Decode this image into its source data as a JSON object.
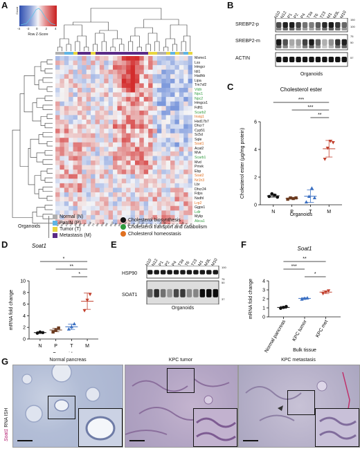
{
  "panels": {
    "a": "A",
    "b": "B",
    "c": "C",
    "d": "D",
    "e": "E",
    "f": "F",
    "g": "G"
  },
  "heatmap": {
    "colorkey_label": "Row Z-Score",
    "colorkey_ticks": [
      "-4",
      "-2",
      "0",
      "2",
      "4"
    ],
    "colorkey_yaxis": "Count",
    "genes": [
      {
        "name": "Msmo1",
        "color": "#111111"
      },
      {
        "name": "Lss",
        "color": "#111111"
      },
      {
        "name": "Hmgcr",
        "color": "#111111"
      },
      {
        "name": "Idi1",
        "color": "#111111"
      },
      {
        "name": "Hadhb",
        "color": "#111111"
      },
      {
        "name": "Lipa",
        "color": "#111111"
      },
      {
        "name": "Tm7sf2",
        "color": "#111111"
      },
      {
        "name": "Vldlr",
        "color": "#2e9a3c"
      },
      {
        "name": "Npc1",
        "color": "#2e9a3c"
      },
      {
        "name": "Npc2",
        "color": "#2e9a3c"
      },
      {
        "name": "Hmgcs1",
        "color": "#111111"
      },
      {
        "name": "Fdft1",
        "color": "#111111"
      },
      {
        "name": "Scarb2",
        "color": "#2e9a3c"
      },
      {
        "name": "Insig1",
        "color": "#e07020"
      },
      {
        "name": "Hsd17b7",
        "color": "#111111"
      },
      {
        "name": "Dhcr7",
        "color": "#111111"
      },
      {
        "name": "Cyp51",
        "color": "#111111"
      },
      {
        "name": "Sc5d",
        "color": "#111111"
      },
      {
        "name": "Sqle",
        "color": "#111111"
      },
      {
        "name": "Soat1",
        "color": "#e07020"
      },
      {
        "name": "Acat2",
        "color": "#111111"
      },
      {
        "name": "Mvk",
        "color": "#111111"
      },
      {
        "name": "Scarb1",
        "color": "#2e9a3c"
      },
      {
        "name": "Mvd",
        "color": "#111111"
      },
      {
        "name": "Pmvk",
        "color": "#111111"
      },
      {
        "name": "Ebp",
        "color": "#111111"
      },
      {
        "name": "Soat2",
        "color": "#e07020"
      },
      {
        "name": "Nr1h3",
        "color": "#e07020"
      },
      {
        "name": "Lbr",
        "color": "#111111"
      },
      {
        "name": "Dhcr24",
        "color": "#111111"
      },
      {
        "name": "Fdps",
        "color": "#111111"
      },
      {
        "name": "Nsdhl",
        "color": "#111111"
      },
      {
        "name": "Lrp2",
        "color": "#e07020"
      },
      {
        "name": "Ggps1",
        "color": "#111111"
      },
      {
        "name": "Ldlr",
        "color": "#2e9a3c"
      },
      {
        "name": "Mylip",
        "color": "#111111"
      },
      {
        "name": "Abca1",
        "color": "#2e9a3c"
      }
    ],
    "samples": [
      "N17",
      "N11",
      "P4",
      "P2",
      "T7",
      "M1",
      "M4",
      "M16",
      "T4",
      "M3",
      "M11",
      "M5",
      "M12",
      "M6",
      "M2",
      "M14",
      "M8",
      "M9",
      "M13",
      "M10",
      "M7",
      "T6",
      "T1",
      "N10",
      "N16",
      "T3",
      "P1",
      "T5",
      "N12",
      "P3",
      "T8"
    ],
    "legend_title": "Organoids",
    "groups": [
      {
        "label": "Normal (N)",
        "color": "#b0b0b0"
      },
      {
        "label": "PanIN (P)",
        "color": "#5fb4e4"
      },
      {
        "label": "Tumor (T)",
        "color": "#e8d640"
      },
      {
        "label": "Metastasis (M)",
        "color": "#5a2a86"
      }
    ],
    "pathways": [
      {
        "label": "Cholesterol biosynthesis",
        "color": "#111111"
      },
      {
        "label": "Cholesterol transport and catabolism",
        "color": "#2e9a3c"
      },
      {
        "label": "Cholesterol homeostasis",
        "color": "#e07020"
      }
    ]
  },
  "blot_b": {
    "lanes": [
      "N10",
      "N12",
      "P1",
      "P2",
      "P4",
      "T3a",
      "T6",
      "T23",
      "M1",
      "M3L",
      "M10"
    ],
    "rows": [
      "SREBP2-p",
      "SREBP2-m",
      "ACTIN"
    ],
    "markers": [
      "150",
      "100",
      "75",
      "50",
      "57"
    ],
    "xlabel": "Organoids"
  },
  "chart_data": [
    {
      "type": "scatter",
      "title": "Cholesterol ester",
      "ylabel": "Cholesterol ester (µg/mg protein)",
      "xlabel": "Organoids",
      "categories": [
        "N",
        "P",
        "T",
        "M"
      ],
      "ylim": [
        0,
        6
      ],
      "yticks": [
        "0",
        "2",
        "4",
        "6"
      ],
      "colors": [
        "#111111",
        "#6b3a1f",
        "#3a6fc2",
        "#c2402e"
      ],
      "points": [
        [
          0.6,
          0.8,
          0.7,
          0.55
        ],
        [
          0.4,
          0.5,
          0.45,
          0.5
        ],
        [
          0.2,
          0.6,
          1.2,
          0.5
        ],
        [
          3.3,
          4.1,
          4.6,
          4.5
        ]
      ],
      "means": [
        0.65,
        0.46,
        0.62,
        4.05
      ],
      "sd": [
        0.1,
        0.05,
        0.45,
        0.6
      ],
      "sig": [
        {
          "a": 0,
          "b": 3,
          "label": "***"
        },
        {
          "a": 1,
          "b": 3,
          "label": "***"
        },
        {
          "a": 2,
          "b": 3,
          "label": "**"
        }
      ]
    },
    {
      "type": "scatter",
      "title": "Soat1",
      "ylabel": "mRNA fold change",
      "xlabel": "Organoids",
      "categories": [
        "N",
        "P",
        "T",
        "M"
      ],
      "ylim": [
        0,
        10
      ],
      "yticks": [
        "0",
        "2",
        "4",
        "6",
        "8",
        "10"
      ],
      "colors": [
        "#111111",
        "#6b3a1f",
        "#3a6fc2",
        "#c2402e"
      ],
      "points": [
        [
          1.0,
          1.2,
          1.1
        ],
        [
          1.2,
          1.5,
          1.9
        ],
        [
          1.7,
          2.1,
          2.6
        ],
        [
          4.9,
          6.7,
          7.7
        ]
      ],
      "means": [
        1.1,
        1.55,
        2.1,
        6.5
      ],
      "sd": [
        0.15,
        0.3,
        0.45,
        1.4
      ],
      "sig": [
        {
          "a": 0,
          "b": 3,
          "label": "*"
        },
        {
          "a": 1,
          "b": 3,
          "label": "**"
        },
        {
          "a": 2,
          "b": 3,
          "label": "*"
        }
      ]
    },
    {
      "type": "scatter",
      "title": "Soat1",
      "ylabel": "mRNA fold change",
      "xlabel": "Bulk tissue",
      "categories": [
        "Normal pancreas",
        "KPC tumor",
        "KPC met"
      ],
      "ylim": [
        0,
        4
      ],
      "yticks": [
        "0",
        "1",
        "2",
        "3",
        "4"
      ],
      "colors": [
        "#111111",
        "#3a6fc2",
        "#c2402e"
      ],
      "points": [
        [
          0.95,
          1.05,
          1.15
        ],
        [
          1.95,
          2.05,
          2.1
        ],
        [
          2.6,
          2.75,
          2.9
        ]
      ],
      "means": [
        1.05,
        2.05,
        2.75
      ],
      "sd": [
        0.1,
        0.08,
        0.15
      ],
      "sig": [
        {
          "a": 0,
          "b": 2,
          "label": "**"
        },
        {
          "a": 0,
          "b": 1,
          "label": "***"
        },
        {
          "a": 1,
          "b": 2,
          "label": "*"
        }
      ]
    }
  ],
  "blot_e": {
    "lanes": [
      "N10",
      "N12",
      "P1",
      "P2",
      "P4",
      "T3a",
      "T6",
      "T23",
      "M1",
      "M3L",
      "M10"
    ],
    "rows": [
      "HSP90",
      "SOAT1"
    ],
    "markers": [
      "100",
      "75",
      "50",
      "37"
    ],
    "xlabel": "Organoids"
  },
  "ihc": {
    "side_label_gene": "Soat1",
    "side_label_rest": " RNA ISH",
    "panels": [
      "Normal pancreas",
      "KPC tumor",
      "KPC metastasis"
    ]
  }
}
